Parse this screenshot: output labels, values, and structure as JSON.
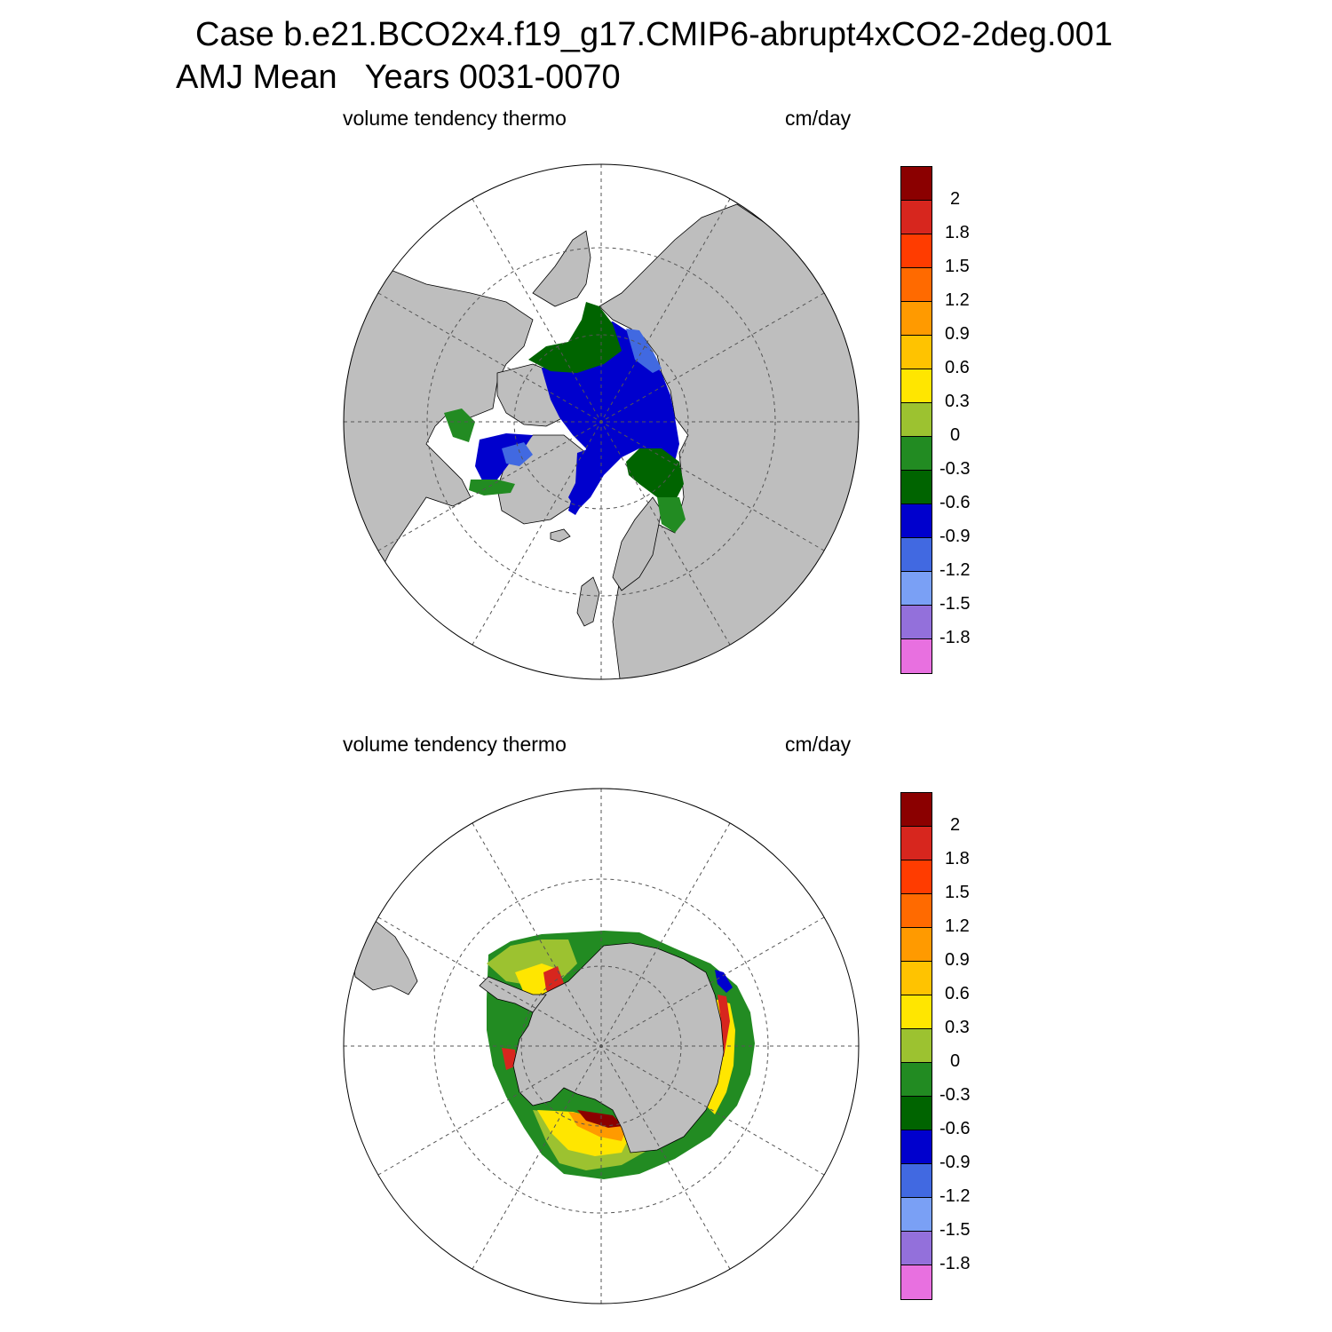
{
  "figure": {
    "title": "Case b.e21.BCO2x4.f19_g17.CMIP6-abrupt4xCO2-2deg.001",
    "subtitle": "AMJ Mean   Years 0031-0070"
  },
  "panels": [
    {
      "name": "north",
      "left_label": "volume tendency thermo",
      "right_label": "cm/day"
    },
    {
      "name": "south",
      "left_label": "volume tendency thermo",
      "right_label": "cm/day"
    }
  ],
  "colorbar": {
    "colors": [
      "#8b0000",
      "#d7261e",
      "#ff3c00",
      "#ff6a00",
      "#ff9a00",
      "#ffc300",
      "#ffe600",
      "#9cc230",
      "#228b22",
      "#006400",
      "#0000cd",
      "#4169e1",
      "#7aa0f5",
      "#9370db",
      "#e870e0"
    ],
    "labels": [
      "2",
      "1.8",
      "1.5",
      "1.2",
      "0.9",
      "0.6",
      "0.3",
      "0",
      "-0.3",
      "-0.6",
      "-0.9",
      "-1.2",
      "-1.5",
      "-1.8"
    ]
  },
  "map_colors": {
    "land": "#bebebe",
    "ocean": "#ffffff",
    "grid": "#555555"
  }
}
